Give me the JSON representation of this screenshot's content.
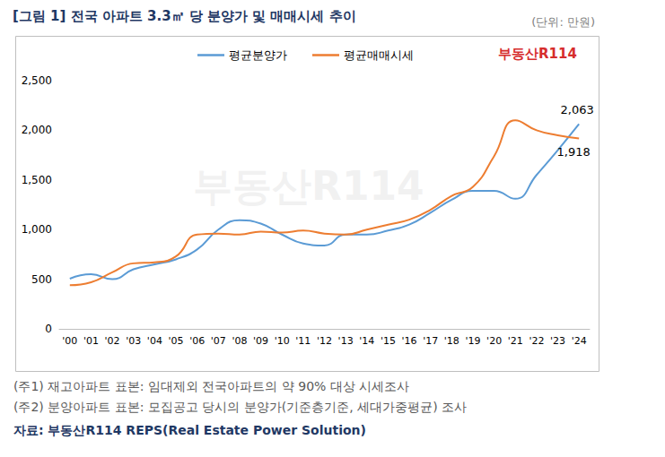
{
  "chart_data": {
    "type": "line",
    "title": "[그림 1] 전국 아파트 3.3㎡ 당 분양가 및 매매시세 추이",
    "subtitle": "(단위: 만원)",
    "logo": "부동산R114",
    "notes": [
      "(주1) 재고아파트 표본: 임대제외 전국아파트의 약 90% 대상 시세조사",
      "(주2) 분양아파트 표본: 모집공고 당시의 분양가(기준층기준, 세대가중평균) 조사"
    ],
    "source": "자료: 부동산R114 REPS(Real Estate Power Solution)",
    "categories": [
      "'00",
      "'01",
      "'02",
      "'03",
      "'04",
      "'05",
      "'06",
      "'07",
      "'08",
      "'09",
      "'10",
      "'11",
      "'12",
      "'13",
      "'14",
      "'15",
      "'16",
      "'17",
      "'18",
      "'19",
      "'20",
      "'21",
      "'22",
      "'23",
      "'24"
    ],
    "series": [
      {
        "name": "평균분양가",
        "color": "#5B9BD5",
        "line_style": "smooth",
        "values": [
          505,
          550,
          500,
          600,
          650,
          700,
          800,
          1000,
          1095,
          1060,
          950,
          860,
          840,
          950,
          950,
          990,
          1050,
          1170,
          1300,
          1390,
          1390,
          1310,
          1550,
          1800,
          2063
        ]
      },
      {
        "name": "평균매매시세",
        "color": "#ED7D31",
        "line_style": "smooth",
        "values": [
          440,
          470,
          570,
          660,
          670,
          730,
          950,
          960,
          950,
          980,
          970,
          990,
          960,
          950,
          1000,
          1050,
          1100,
          1200,
          1340,
          1430,
          1740,
          2100,
          2000,
          1950,
          1918
        ]
      }
    ],
    "annotations": [
      {
        "x": "'24",
        "y": 2063,
        "text": "2,063"
      },
      {
        "x": "'24",
        "y": 1918,
        "text": "1,918"
      }
    ],
    "ylim": [
      0,
      2500
    ],
    "yticks": [
      0,
      500,
      {
        "value": 1000,
        "label": "1,000"
      },
      {
        "value": 1500,
        "label": "1,500"
      },
      {
        "value": 2000,
        "label": "2,000"
      },
      {
        "value": 2500,
        "label": "2,500"
      }
    ],
    "grid": false,
    "legend": "top"
  }
}
